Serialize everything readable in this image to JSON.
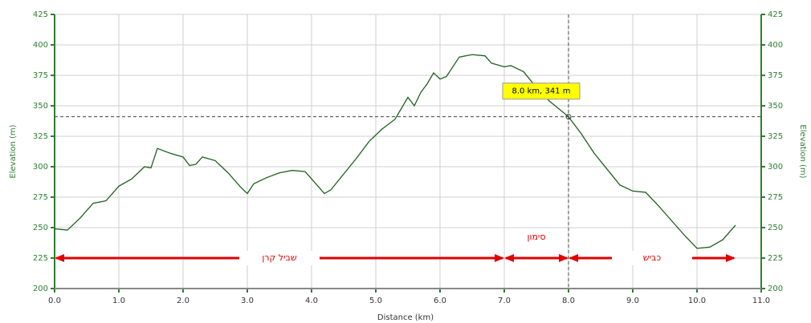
{
  "chart_data": {
    "type": "line",
    "x_label": "Distance (km)",
    "y_label": "Elevation (m)",
    "y2_label": "Elevation (m)",
    "xlim": [
      0,
      11
    ],
    "xticks": [
      {
        "value": 0,
        "label": "0.0"
      },
      {
        "value": 1,
        "label": "1.0"
      },
      {
        "value": 2,
        "label": "2.0"
      },
      {
        "value": 3,
        "label": "3.0"
      },
      {
        "value": 4,
        "label": "4.0"
      },
      {
        "value": 5,
        "label": "5.0"
      },
      {
        "value": 6,
        "label": "6.0"
      },
      {
        "value": 7,
        "label": "7.0"
      },
      {
        "value": 8,
        "label": "8.0"
      },
      {
        "value": 9,
        "label": "9.0"
      },
      {
        "value": 10,
        "label": "10.0"
      },
      {
        "value": 11,
        "label": "11.0"
      }
    ],
    "ylim": [
      200,
      425
    ],
    "yticks": [
      200,
      225,
      250,
      275,
      300,
      325,
      350,
      375,
      400,
      425
    ],
    "y2lim": [
      200,
      425
    ],
    "y2ticks": [
      200,
      225,
      250,
      275,
      300,
      325,
      350,
      375,
      400,
      425
    ],
    "grid": true,
    "x": [
      0.0,
      0.2,
      0.4,
      0.6,
      0.8,
      1.0,
      1.2,
      1.4,
      1.5,
      1.6,
      1.8,
      2.0,
      2.1,
      2.2,
      2.3,
      2.5,
      2.7,
      2.9,
      3.0,
      3.1,
      3.3,
      3.5,
      3.7,
      3.9,
      4.0,
      4.2,
      4.3,
      4.5,
      4.7,
      4.9,
      5.1,
      5.3,
      5.5,
      5.6,
      5.7,
      5.8,
      5.9,
      6.0,
      6.1,
      6.3,
      6.5,
      6.7,
      6.8,
      7.0,
      7.1,
      7.3,
      7.5,
      7.7,
      8.0,
      8.2,
      8.4,
      8.6,
      8.8,
      9.0,
      9.2,
      9.4,
      9.6,
      9.8,
      10.0,
      10.2,
      10.4,
      10.6
    ],
    "series": [
      {
        "name": "Elevation",
        "color": "#1f5f1f",
        "values": [
          249,
          248,
          258,
          270,
          272,
          284,
          290,
          300,
          299,
          315,
          311,
          308,
          301,
          302,
          308,
          305,
          295,
          283,
          278,
          286,
          291,
          295,
          297,
          296,
          290,
          278,
          281,
          294,
          307,
          321,
          331,
          339,
          357,
          350,
          361,
          368,
          377,
          372,
          374,
          390,
          392,
          391,
          385,
          382,
          383,
          378,
          365,
          354,
          341,
          327,
          311,
          298,
          285,
          280,
          279,
          268,
          256,
          244,
          233,
          234,
          240,
          252
        ]
      }
    ],
    "cursor": {
      "x": 8.0,
      "y": 341,
      "label": "8.0 km, 341 m"
    },
    "segments": [
      {
        "x_start": 0,
        "x_end": 7,
        "y": 225,
        "label": "שביל קרן"
      },
      {
        "x_start": 7,
        "x_end": 8,
        "y": 225,
        "label": "סימון"
      },
      {
        "x_start": 8,
        "x_end": 10.6,
        "y": 225,
        "label": "כביש"
      }
    ],
    "segment_color": "#e00000"
  }
}
